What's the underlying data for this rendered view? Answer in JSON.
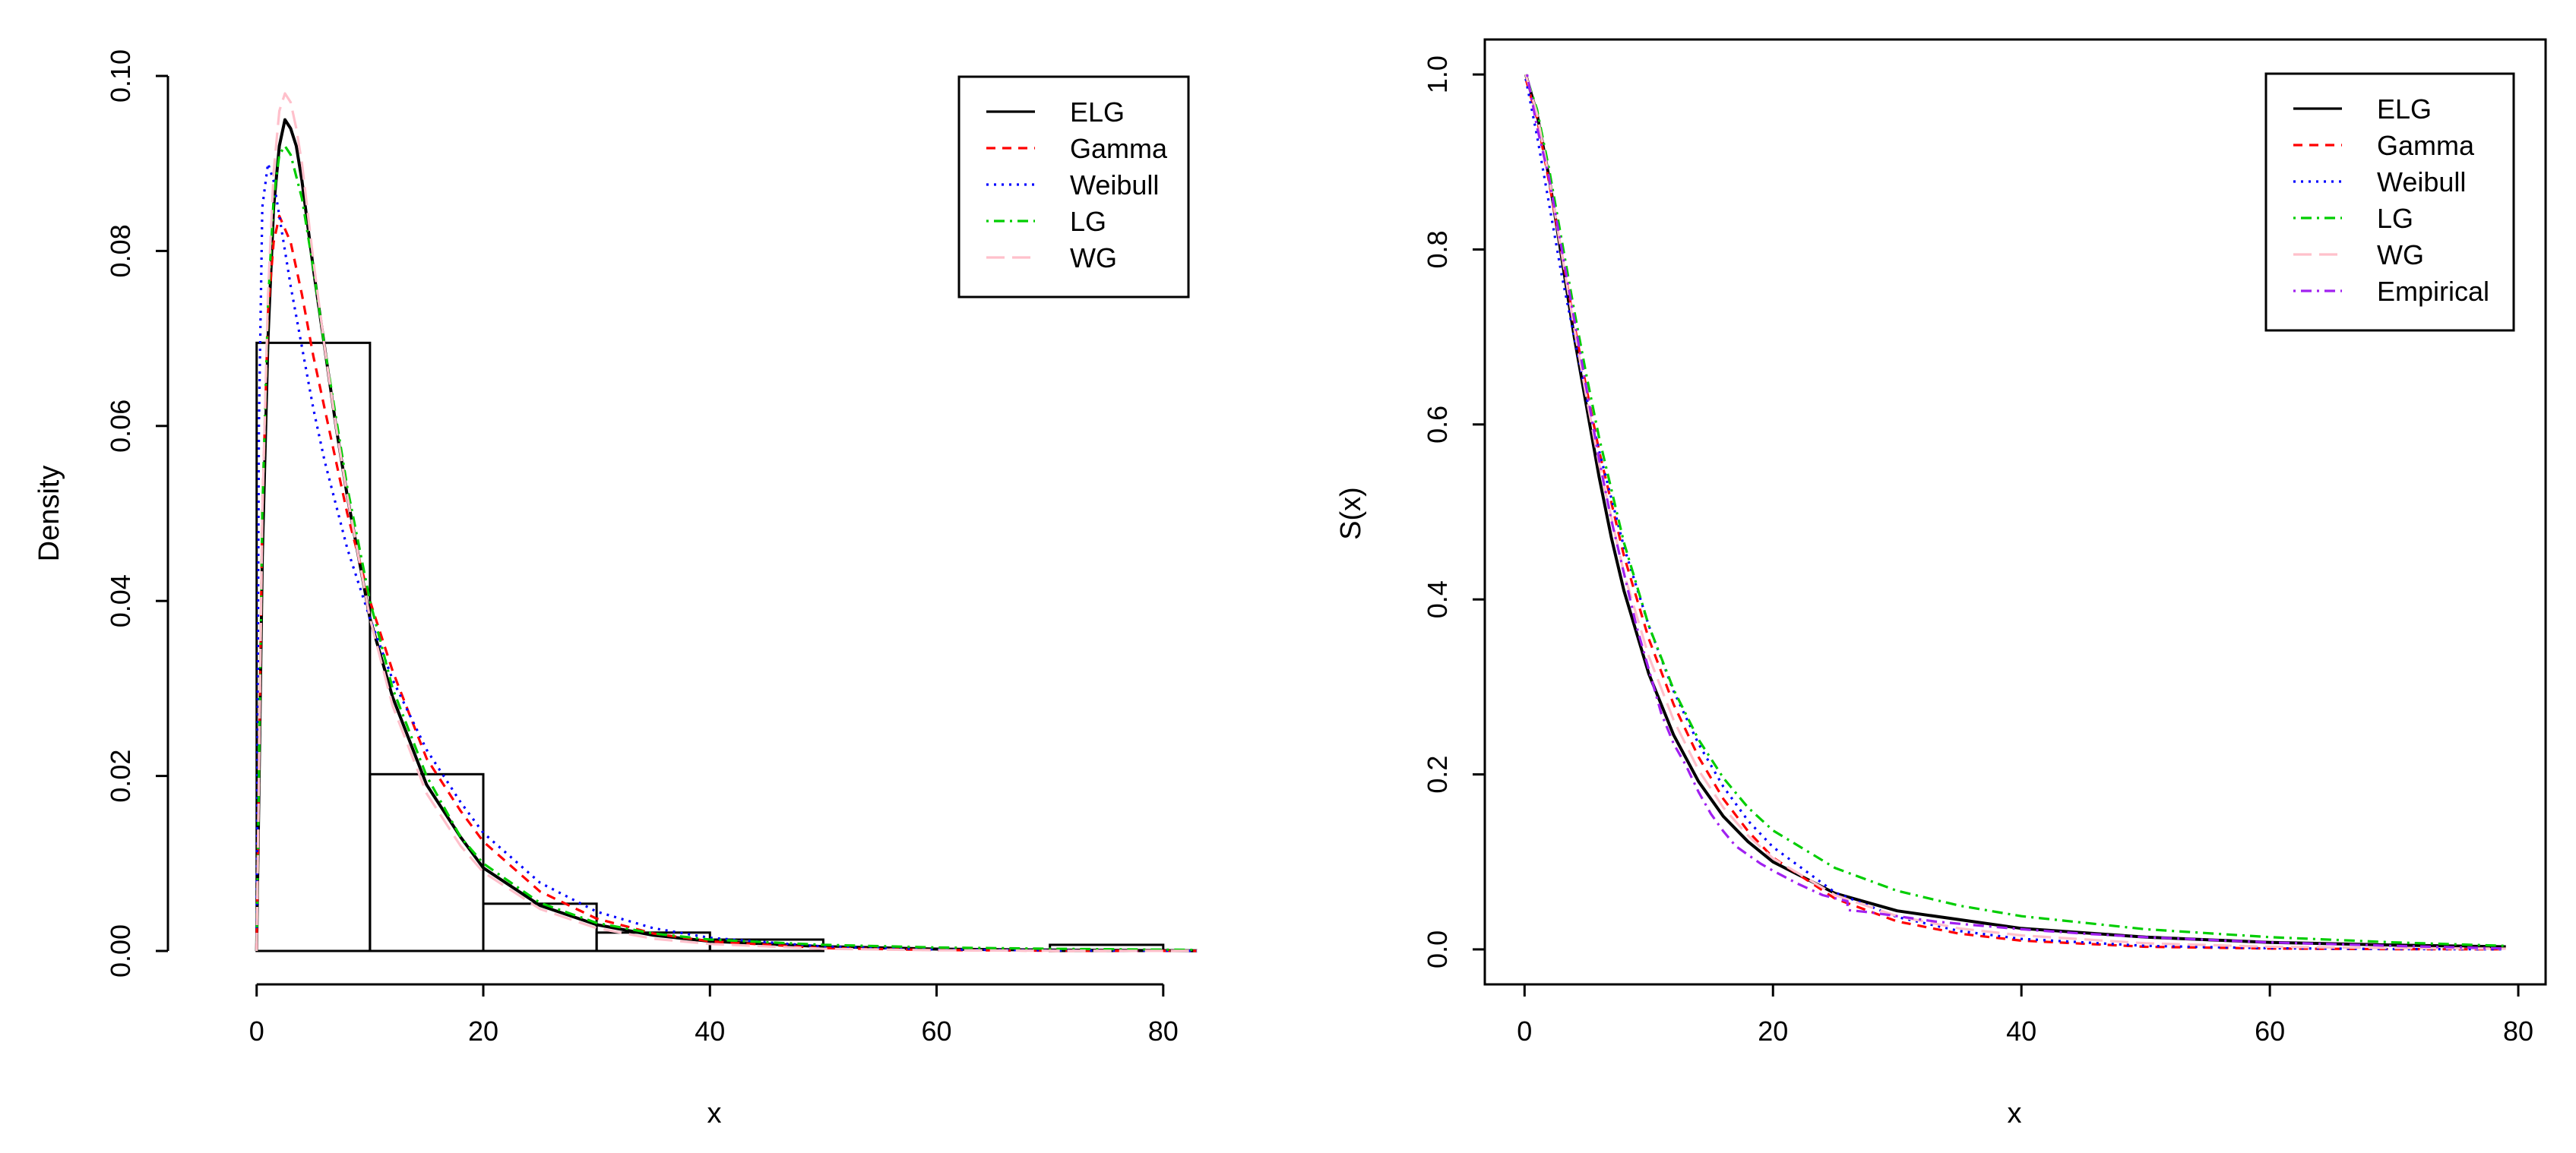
{
  "chart_data": [
    {
      "type": "histogram-with-density-curves",
      "title": "",
      "xlabel": "x",
      "ylabel": "Density",
      "xlim": [
        -3,
        83.5
      ],
      "ylim": [
        0,
        0.1
      ],
      "xticks": [
        0,
        20,
        40,
        60,
        80
      ],
      "xtick_labels": [
        "0",
        "20",
        "40",
        "60",
        "80"
      ],
      "yticks": [
        0,
        0.02,
        0.04,
        0.06,
        0.08,
        0.1
      ],
      "ytick_labels": [
        "0.00",
        "0.02",
        "0.04",
        "0.06",
        "0.08",
        "0.10"
      ],
      "grid": false,
      "legend_position": "top-right",
      "histogram": {
        "bins": [
          [
            0,
            10
          ],
          [
            10,
            20
          ],
          [
            20,
            30
          ],
          [
            30,
            40
          ],
          [
            40,
            50
          ],
          [
            50,
            60
          ],
          [
            60,
            70
          ],
          [
            70,
            80
          ]
        ],
        "density": [
          0.0695,
          0.0202,
          0.0054,
          0.0021,
          0.0013,
          0.0,
          0.0,
          0.0007
        ]
      },
      "series": [
        {
          "name": "ELG",
          "color": "#000000",
          "dash": "solid",
          "x": [
            0,
            0.5,
            1,
            1.5,
            2,
            2.5,
            3,
            3.5,
            4,
            5,
            6,
            7,
            8,
            10,
            12,
            15,
            18,
            20,
            25,
            30,
            35,
            40,
            50,
            60,
            70,
            80,
            83
          ],
          "values": [
            0,
            0.045,
            0.07,
            0.085,
            0.092,
            0.095,
            0.094,
            0.092,
            0.088,
            0.078,
            0.069,
            0.06,
            0.052,
            0.038,
            0.029,
            0.019,
            0.013,
            0.0095,
            0.0052,
            0.003,
            0.0018,
            0.0011,
            0.0005,
            0.00022,
            0.0001,
            4e-05,
            3e-05
          ]
        },
        {
          "name": "Gamma",
          "color": "#ff0000",
          "dash": "dashed",
          "x": [
            0,
            0.5,
            1,
            1.5,
            2,
            3,
            4,
            5,
            6,
            8,
            10,
            12,
            15,
            18,
            20,
            25,
            30,
            35,
            40,
            50,
            60,
            70,
            80,
            83
          ],
          "values": [
            0,
            0.05,
            0.073,
            0.081,
            0.084,
            0.081,
            0.075,
            0.068,
            0.062,
            0.05,
            0.04,
            0.032,
            0.022,
            0.016,
            0.0125,
            0.0068,
            0.0037,
            0.002,
            0.0011,
            0.00033,
            0.0001,
            3e-05,
            1e-05,
            1e-05
          ]
        },
        {
          "name": "Weibull",
          "color": "#0000ff",
          "dash": "dotted",
          "x": [
            0,
            0.2,
            0.5,
            1,
            1.5,
            2,
            3,
            4,
            5,
            6,
            8,
            10,
            12,
            15,
            18,
            20,
            25,
            30,
            35,
            40,
            50,
            60,
            70,
            80,
            83
          ],
          "values": [
            0,
            0.06,
            0.085,
            0.09,
            0.088,
            0.084,
            0.076,
            0.069,
            0.062,
            0.056,
            0.046,
            0.038,
            0.031,
            0.023,
            0.017,
            0.0135,
            0.0078,
            0.0045,
            0.0026,
            0.0015,
            0.0005,
            0.00017,
            6e-05,
            2e-05,
            1e-05
          ]
        },
        {
          "name": "LG",
          "color": "#00cd00",
          "dash": "dashdot",
          "x": [
            0,
            0.5,
            1,
            1.5,
            2,
            2.5,
            3,
            4,
            5,
            6,
            7,
            8,
            10,
            12,
            15,
            18,
            20,
            25,
            30,
            35,
            40,
            50,
            60,
            70,
            80,
            83
          ],
          "values": [
            0,
            0.05,
            0.074,
            0.086,
            0.091,
            0.092,
            0.091,
            0.086,
            0.078,
            0.069,
            0.061,
            0.053,
            0.04,
            0.03,
            0.02,
            0.013,
            0.01,
            0.0055,
            0.0032,
            0.002,
            0.0013,
            0.0007,
            0.0004,
            0.00025,
            0.00015,
            0.00012
          ]
        },
        {
          "name": "WG",
          "color": "#ffc0cb",
          "dash": "longdash",
          "x": [
            0,
            0.5,
            1,
            1.5,
            2,
            2.5,
            3,
            3.5,
            4,
            5,
            6,
            7,
            8,
            10,
            12,
            15,
            18,
            20,
            25,
            30,
            35,
            40,
            50,
            60,
            70,
            80,
            83
          ],
          "values": [
            0,
            0.05,
            0.075,
            0.089,
            0.096,
            0.098,
            0.097,
            0.094,
            0.09,
            0.079,
            0.069,
            0.06,
            0.052,
            0.038,
            0.028,
            0.018,
            0.012,
            0.009,
            0.0048,
            0.0026,
            0.0014,
            0.0008,
            0.00025,
            8e-05,
            3e-05,
            1e-05,
            1e-05
          ]
        }
      ]
    },
    {
      "type": "line",
      "title": "",
      "xlabel": "x",
      "ylabel": "S(x)",
      "xlim": [
        -3.2,
        82.2
      ],
      "ylim": [
        -0.04,
        1.04
      ],
      "xticks": [
        0,
        20,
        40,
        60,
        80
      ],
      "xtick_labels": [
        "0",
        "20",
        "40",
        "60",
        "80"
      ],
      "yticks": [
        0,
        0.2,
        0.4,
        0.6,
        0.8,
        1
      ],
      "ytick_labels": [
        "0.0",
        "0.2",
        "0.4",
        "0.6",
        "0.8",
        "1.0"
      ],
      "grid": false,
      "legend_position": "top-right",
      "series": [
        {
          "name": "ELG",
          "color": "#000000",
          "dash": "solid",
          "x": [
            0.1,
            1,
            2,
            3,
            4,
            5,
            6,
            7,
            8,
            10,
            12,
            14,
            16,
            18,
            20,
            25,
            30,
            40,
            50,
            60,
            70,
            79
          ],
          "values": [
            1.0,
            0.955,
            0.88,
            0.79,
            0.7,
            0.62,
            0.54,
            0.47,
            0.41,
            0.315,
            0.245,
            0.192,
            0.152,
            0.123,
            0.1,
            0.064,
            0.044,
            0.024,
            0.014,
            0.008,
            0.005,
            0.003
          ]
        },
        {
          "name": "Gamma",
          "color": "#ff0000",
          "dash": "dashed",
          "x": [
            0.1,
            1,
            2,
            3,
            4,
            5,
            6,
            8,
            10,
            12,
            14,
            16,
            18,
            20,
            25,
            30,
            35,
            40,
            50,
            60,
            70,
            79
          ],
          "values": [
            0.995,
            0.95,
            0.875,
            0.795,
            0.715,
            0.64,
            0.57,
            0.45,
            0.355,
            0.28,
            0.22,
            0.172,
            0.135,
            0.105,
            0.058,
            0.032,
            0.018,
            0.01,
            0.003,
            0.001,
            0.0003,
            0.0001
          ]
        },
        {
          "name": "Weibull",
          "color": "#0000ff",
          "dash": "dotted",
          "x": [
            0.1,
            1,
            2,
            3,
            4,
            5,
            6,
            8,
            10,
            12,
            14,
            16,
            18,
            20,
            25,
            30,
            35,
            40,
            50,
            60,
            70,
            79
          ],
          "values": [
            0.995,
            0.93,
            0.85,
            0.77,
            0.7,
            0.63,
            0.57,
            0.46,
            0.37,
            0.295,
            0.235,
            0.186,
            0.147,
            0.117,
            0.065,
            0.037,
            0.021,
            0.012,
            0.004,
            0.0013,
            0.0004,
            0.0001
          ]
        },
        {
          "name": "LG",
          "color": "#00cd00",
          "dash": "dashdot",
          "x": [
            0.1,
            1,
            2,
            3,
            4,
            5,
            6,
            8,
            10,
            12,
            14,
            16,
            18,
            20,
            25,
            30,
            35,
            40,
            50,
            60,
            70,
            79
          ],
          "values": [
            1.0,
            0.96,
            0.89,
            0.81,
            0.73,
            0.655,
            0.585,
            0.465,
            0.37,
            0.297,
            0.24,
            0.196,
            0.162,
            0.136,
            0.093,
            0.067,
            0.05,
            0.038,
            0.023,
            0.014,
            0.008,
            0.004
          ]
        },
        {
          "name": "WG",
          "color": "#ffc0cb",
          "dash": "longdash",
          "x": [
            0.1,
            1,
            2,
            3,
            4,
            5,
            6,
            8,
            10,
            12,
            14,
            16,
            18,
            20,
            25,
            30,
            35,
            40,
            50,
            60,
            70,
            79
          ],
          "values": [
            1.0,
            0.955,
            0.88,
            0.795,
            0.71,
            0.63,
            0.555,
            0.43,
            0.335,
            0.262,
            0.205,
            0.162,
            0.13,
            0.104,
            0.062,
            0.038,
            0.024,
            0.016,
            0.007,
            0.003,
            0.0015,
            0.0008
          ]
        },
        {
          "name": "Empirical",
          "color": "#a020f0",
          "dash": "dashdot",
          "x": [
            0.2,
            1,
            2,
            3,
            4,
            5,
            6,
            7,
            8,
            9,
            10,
            11,
            12,
            13,
            14,
            15,
            16,
            17,
            18,
            19,
            20,
            22,
            24,
            26,
            26,
            28,
            30,
            33,
            36,
            40,
            45,
            50,
            55,
            60,
            70,
            79
          ],
          "values": [
            1.0,
            0.94,
            0.88,
            0.8,
            0.72,
            0.64,
            0.56,
            0.49,
            0.43,
            0.37,
            0.32,
            0.27,
            0.235,
            0.21,
            0.18,
            0.155,
            0.135,
            0.118,
            0.108,
            0.098,
            0.09,
            0.075,
            0.062,
            0.055,
            0.045,
            0.042,
            0.038,
            0.032,
            0.028,
            0.023,
            0.018,
            0.014,
            0.011,
            0.008,
            0.004,
            0.001
          ]
        }
      ]
    }
  ]
}
